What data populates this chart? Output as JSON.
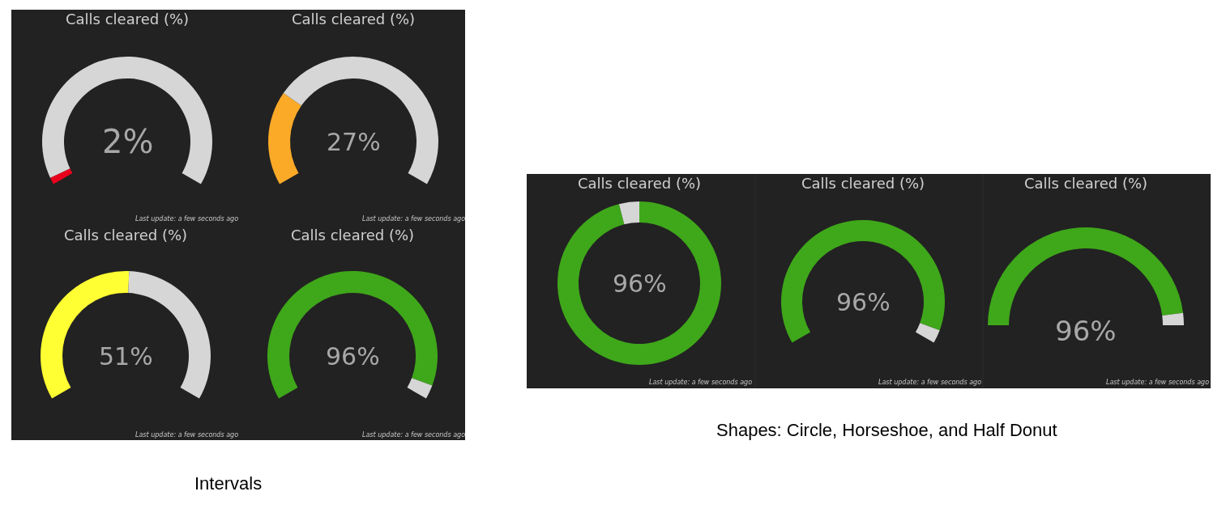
{
  "chart_data": [
    {
      "type": "donut",
      "title": "Calls cleared (%)",
      "categories": [
        null,
        null
      ],
      "values": [
        2,
        98
      ],
      "colors": [
        "#e8001c",
        "#d6d6d6"
      ],
      "annotations": [
        "2%",
        "Last update: a few seconds ago",
        "Intervals"
      ]
    },
    {
      "type": "donut",
      "title": "Calls cleared (%)",
      "categories": [
        null,
        null
      ],
      "values": [
        27,
        73
      ],
      "colors": [
        "#fbaa28",
        "#d6d6d6"
      ],
      "annotations": [
        "27%",
        "Last update: a few seconds ago"
      ]
    },
    {
      "type": "donut",
      "title": "Calls cleared (%)",
      "categories": [
        null,
        null
      ],
      "values": [
        96,
        4
      ],
      "colors": [
        "#3fa71a",
        "#d6d6d6"
      ],
      "annotations": [
        "96%",
        "Last update: a few seconds ago",
        "Shapes: Circle, Horseshoe, and Half Donut"
      ]
    },
    {
      "type": "donut",
      "title": "Calls cleared (%)",
      "categories": [
        null,
        null
      ],
      "values": [
        96,
        4
      ],
      "colors": [
        "#3fa71a",
        "#d6d6d6"
      ],
      "annotations": [
        "96%",
        "Last update: a few seconds ago"
      ]
    },
    {
      "type": "donut",
      "title": "Calls cleared (%)",
      "categories": [
        null,
        null
      ],
      "values": [
        96,
        4
      ],
      "colors": [
        "#3fa71a",
        "#d6d6d6"
      ],
      "annotations": [
        "96%",
        "Last update: a few seconds ago"
      ]
    },
    {
      "type": "donut",
      "title": "Calls cleared (%)",
      "categories": [
        null,
        null
      ],
      "values": [
        51,
        49
      ],
      "colors": [
        "#ffff33",
        "#d6d6d6"
      ],
      "annotations": [
        "51%",
        "Last update: a few seconds ago"
      ]
    },
    {
      "type": "donut",
      "title": "Calls cleared (%)",
      "categories": [
        null,
        null
      ],
      "values": [
        96,
        4
      ],
      "colors": [
        "#3fa71a",
        "#d6d6d6"
      ],
      "annotations": [
        "96%",
        "Last update: a few seconds ago"
      ]
    }
  ]
}
